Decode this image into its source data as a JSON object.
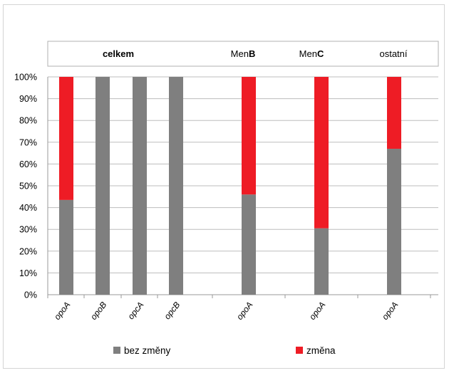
{
  "chart_data": {
    "type": "bar",
    "stacked": true,
    "percent": true,
    "group_headers": [
      {
        "label": "celkem",
        "bold": true,
        "prefix": "",
        "suffix": ""
      },
      {
        "label": "MenB",
        "bold": false,
        "prefix": "Men",
        "suffix": "B"
      },
      {
        "label": "MenC",
        "bold": false,
        "prefix": "Men",
        "suffix": "C"
      },
      {
        "label": "ostatní",
        "bold": false,
        "prefix": "",
        "suffix": ""
      }
    ],
    "categories": [
      "opoA",
      "opoB",
      "opcA",
      "opcB",
      "opoA",
      "opoA",
      "opoA"
    ],
    "category_groups": [
      0,
      0,
      0,
      0,
      1,
      2,
      3
    ],
    "series": [
      {
        "name": "bez změny",
        "color": "#7f7f7f",
        "values": [
          43.5,
          100,
          100,
          100,
          46,
          30.5,
          67
        ]
      },
      {
        "name": "změna",
        "color": "#ee1c25",
        "values": [
          56.5,
          0,
          0,
          0,
          54,
          69.5,
          33
        ]
      }
    ],
    "yticks": [
      "0%",
      "10%",
      "20%",
      "30%",
      "40%",
      "50%",
      "60%",
      "70%",
      "80%",
      "90%",
      "100%"
    ],
    "ylim": [
      0,
      100
    ],
    "grid": true,
    "legend_position": "bottom"
  }
}
